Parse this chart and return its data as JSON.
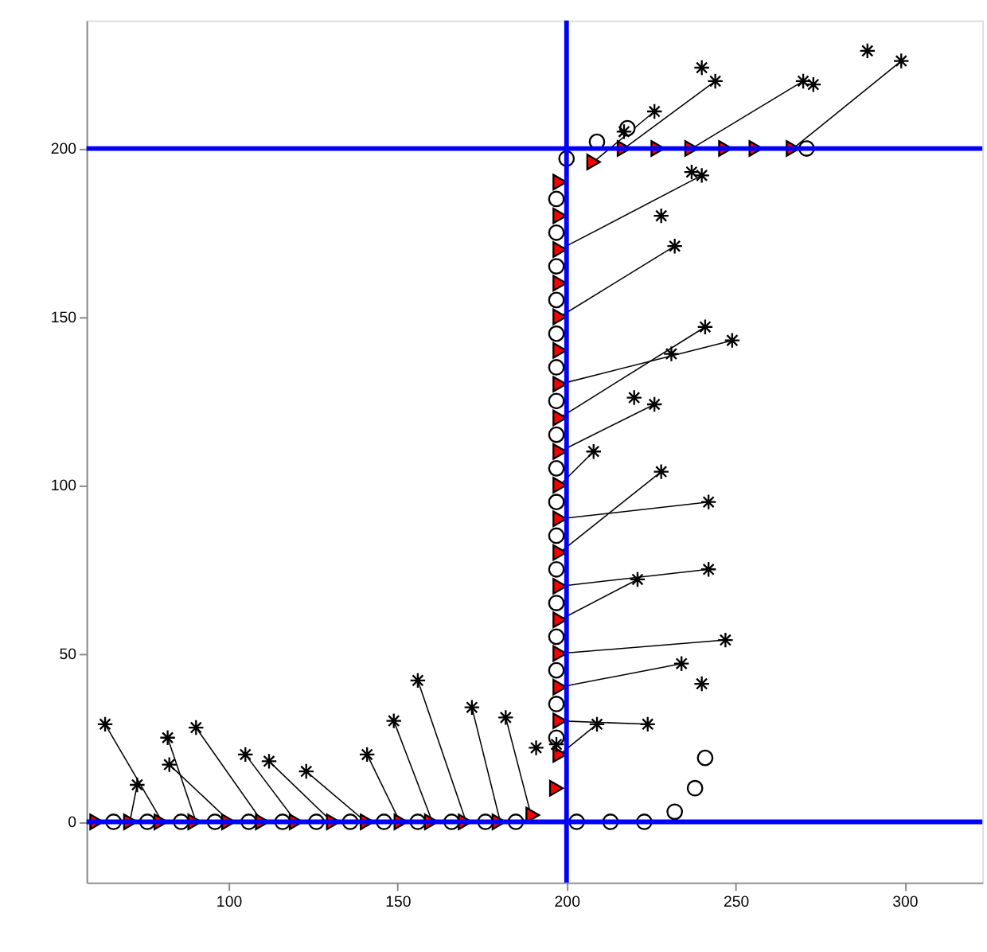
{
  "chart_data": {
    "type": "scatter",
    "xlim": [
      58,
      323
    ],
    "ylim": [
      -18,
      238
    ],
    "xticks": [
      100,
      150,
      200,
      250,
      300
    ],
    "yticks": [
      0,
      50,
      100,
      150,
      200
    ],
    "grid": false,
    "ref_lines": [
      {
        "axis": "x",
        "value": 200,
        "color": "#0000ff"
      },
      {
        "axis": "y",
        "value": 0,
        "color": "#0000ff"
      },
      {
        "axis": "y",
        "value": 200,
        "color": "#0000ff"
      }
    ],
    "series": [
      {
        "type": "line",
        "color": "#000000",
        "x": [
          63.5,
          80.4
        ],
        "values": [
          29,
          0
        ]
      },
      {
        "type": "line",
        "color": "#000000",
        "x": [
          73,
          70.8
        ],
        "values": [
          11,
          0
        ]
      },
      {
        "type": "line",
        "color": "#000000",
        "x": [
          82,
          90.4
        ],
        "values": [
          25,
          0
        ]
      },
      {
        "type": "line",
        "color": "#000000",
        "x": [
          82.5,
          100.5
        ],
        "values": [
          17,
          0
        ]
      },
      {
        "type": "line",
        "color": "#000000",
        "x": [
          90.4,
          110
        ],
        "values": [
          28,
          0
        ]
      },
      {
        "type": "line",
        "color": "#000000",
        "x": [
          105,
          120
        ],
        "values": [
          20,
          0
        ]
      },
      {
        "type": "line",
        "color": "#000000",
        "x": [
          112,
          130.6
        ],
        "values": [
          18,
          0
        ]
      },
      {
        "type": "line",
        "color": "#000000",
        "x": [
          123,
          140.6
        ],
        "values": [
          15,
          0
        ]
      },
      {
        "type": "line",
        "color": "#000000",
        "x": [
          141,
          150.7
        ],
        "values": [
          20,
          0
        ]
      },
      {
        "type": "line",
        "color": "#000000",
        "x": [
          148.9,
          160.3
        ],
        "values": [
          30,
          0
        ]
      },
      {
        "type": "line",
        "color": "#000000",
        "x": [
          156,
          170.3
        ],
        "values": [
          42,
          0
        ]
      },
      {
        "type": "line",
        "color": "#000000",
        "x": [
          172,
          180.4
        ],
        "values": [
          34,
          0
        ]
      },
      {
        "type": "line",
        "color": "#000000",
        "x": [
          182,
          189.5
        ],
        "values": [
          31,
          2
        ]
      },
      {
        "type": "line",
        "color": "#000000",
        "x": [
          209,
          198
        ],
        "values": [
          29,
          20
        ]
      },
      {
        "type": "line",
        "color": "#000000",
        "x": [
          224,
          198
        ],
        "values": [
          29,
          30
        ]
      },
      {
        "type": "line",
        "color": "#000000",
        "x": [
          234,
          198
        ],
        "values": [
          47,
          40
        ]
      },
      {
        "type": "line",
        "color": "#000000",
        "x": [
          247,
          198
        ],
        "values": [
          54,
          50
        ]
      },
      {
        "type": "line",
        "color": "#000000",
        "x": [
          221,
          198
        ],
        "values": [
          72,
          60
        ]
      },
      {
        "type": "line",
        "color": "#000000",
        "x": [
          242,
          198
        ],
        "values": [
          75,
          70
        ]
      },
      {
        "type": "line",
        "color": "#000000",
        "x": [
          228,
          198
        ],
        "values": [
          104,
          80
        ]
      },
      {
        "type": "line",
        "color": "#000000",
        "x": [
          242,
          198
        ],
        "values": [
          95,
          90
        ]
      },
      {
        "type": "line",
        "color": "#000000",
        "x": [
          208,
          198
        ],
        "values": [
          110,
          100
        ]
      },
      {
        "type": "line",
        "color": "#000000",
        "x": [
          226,
          198
        ],
        "values": [
          124,
          110
        ]
      },
      {
        "type": "line",
        "color": "#000000",
        "x": [
          241,
          198
        ],
        "values": [
          147,
          120
        ]
      },
      {
        "type": "line",
        "color": "#000000",
        "x": [
          249,
          198
        ],
        "values": [
          143,
          130
        ]
      },
      {
        "type": "line",
        "color": "#000000",
        "x": [
          232,
          198
        ],
        "values": [
          171,
          150
        ]
      },
      {
        "type": "line",
        "color": "#000000",
        "x": [
          240,
          198
        ],
        "values": [
          192,
          170
        ]
      },
      {
        "type": "line",
        "color": "#000000",
        "x": [
          244,
          217
        ],
        "values": [
          220,
          200
        ]
      },
      {
        "type": "line",
        "color": "#000000",
        "x": [
          226,
          208
        ],
        "values": [
          211,
          196
        ]
      },
      {
        "type": "line",
        "color": "#000000",
        "x": [
          270,
          237
        ],
        "values": [
          220,
          200
        ]
      },
      {
        "type": "line",
        "color": "#000000",
        "x": [
          299,
          267
        ],
        "values": [
          226,
          200
        ]
      },
      {
        "marker": "circle",
        "color": "#000000",
        "x": [
          66,
          76,
          86,
          96,
          106,
          116,
          126,
          136,
          146,
          156,
          166,
          176,
          185,
          203,
          213,
          223,
          232,
          238,
          241,
          197,
          197,
          197,
          197,
          197,
          197,
          197,
          197,
          197,
          197,
          197,
          197,
          197,
          197,
          197,
          197,
          197,
          200,
          209,
          218,
          271
        ],
        "values": [
          0,
          0,
          0,
          0,
          0,
          0,
          0,
          0,
          0,
          0,
          0,
          0,
          0,
          0,
          0,
          0,
          3,
          10,
          19,
          25,
          35,
          45,
          55,
          65,
          75,
          85,
          95,
          105,
          115,
          125,
          135,
          145,
          155,
          165,
          175,
          185,
          197,
          202,
          206,
          200
        ]
      },
      {
        "marker": "triangle",
        "color": "#ff0000",
        "x": [
          61,
          71,
          80,
          90,
          100,
          110,
          120,
          131,
          141,
          151,
          160,
          170,
          180,
          190,
          197,
          198,
          198,
          198,
          198,
          198,
          198,
          198,
          198,
          198,
          198,
          198,
          198,
          198,
          198,
          198,
          198,
          198,
          198,
          208,
          217,
          227,
          237,
          247,
          256,
          267
        ],
        "values": [
          0,
          0,
          0,
          0,
          0,
          0,
          0,
          0,
          0,
          0,
          0,
          0,
          0,
          2,
          10,
          20,
          30,
          40,
          50,
          60,
          70,
          80,
          90,
          100,
          110,
          120,
          130,
          140,
          150,
          160,
          170,
          180,
          190,
          196,
          200,
          200,
          200,
          200,
          200,
          200
        ]
      },
      {
        "marker": "cross",
        "color": "#000000",
        "x": [
          63.5,
          73,
          82,
          82.5,
          90.4,
          105,
          112,
          123,
          141,
          148.9,
          156,
          172,
          182,
          191,
          197,
          209,
          224,
          234,
          240,
          247,
          221,
          242,
          228,
          242,
          208,
          220,
          226,
          231,
          241,
          249,
          228,
          232,
          237,
          240,
          217,
          226,
          240,
          244,
          270,
          273,
          289,
          299
        ],
        "values": [
          29,
          11,
          25,
          17,
          28,
          20,
          18,
          15,
          20,
          30,
          42,
          34,
          31,
          22,
          23,
          29,
          29,
          47,
          41,
          54,
          72,
          75,
          104,
          95,
          110,
          126,
          124,
          139,
          147,
          143,
          180,
          171,
          193,
          192,
          205,
          211,
          224,
          220,
          220,
          219,
          229,
          226
        ]
      }
    ]
  }
}
